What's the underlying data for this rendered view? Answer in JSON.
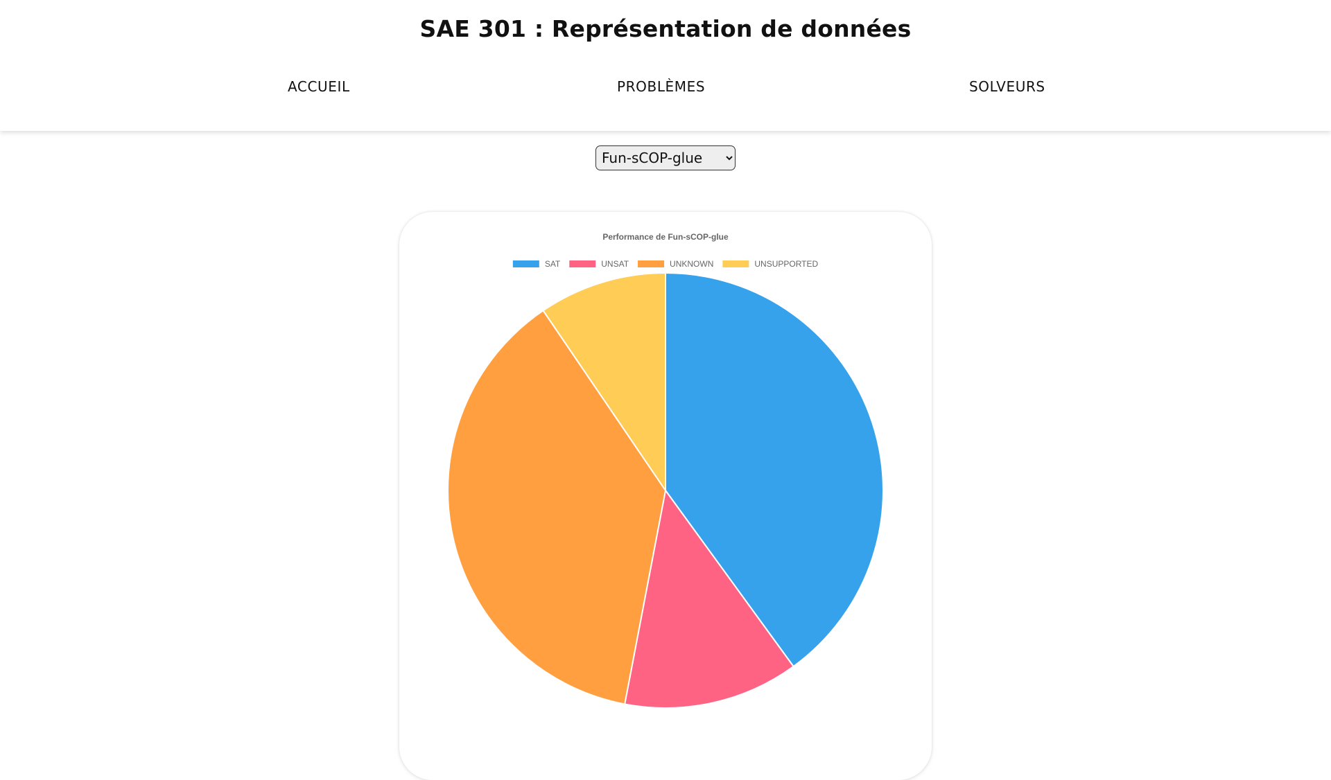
{
  "header": {
    "title": "SAE 301 : Représentation de données",
    "nav": {
      "accueil": "ACCUEIL",
      "problemes": "PROBLÈMES",
      "solveurs": "SOLVEURS"
    }
  },
  "solver_select": {
    "selected": "Fun-sCOP-glue",
    "options": [
      "Fun-sCOP-glue"
    ]
  },
  "chart_data": {
    "type": "pie",
    "title": "Performance de Fun-sCOP-glue",
    "legend_position": "top",
    "categories": [
      "SAT",
      "UNSAT",
      "UNKNOWN",
      "UNSUPPORTED"
    ],
    "values": [
      40,
      13,
      37.5,
      9.5
    ],
    "colors": [
      "#36a2eb",
      "#ff6384",
      "#ff9f40",
      "#ffcd56"
    ]
  }
}
